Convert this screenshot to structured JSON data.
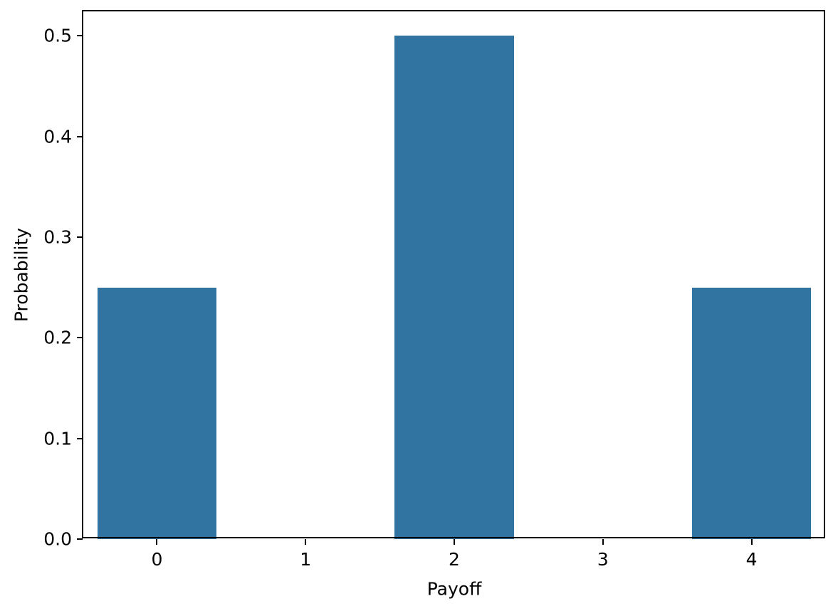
{
  "chart_data": {
    "type": "bar",
    "title": "",
    "xlabel": "Payoff",
    "ylabel": "Probability",
    "categories": [
      "0",
      "1",
      "2",
      "3",
      "4"
    ],
    "values": [
      0.25,
      0,
      0.5,
      0,
      0.25
    ],
    "bar_width": 0.8,
    "colors": {
      "bar": "#3274a1",
      "text": "#000000",
      "spine": "#000000",
      "background": "#ffffff"
    },
    "axes": {
      "xlim": [
        -0.5,
        4.5
      ],
      "ylim": [
        0,
        0.525
      ],
      "grid": false,
      "legend_position": "none"
    },
    "xticks": {
      "positions": [
        0,
        1,
        2,
        3,
        4
      ],
      "labels": [
        "0",
        "1",
        "2",
        "3",
        "4"
      ]
    },
    "yticks": {
      "positions": [
        0,
        0.1,
        0.2,
        0.3,
        0.4,
        0.5
      ],
      "labels": [
        "0.0",
        "0.1",
        "0.2",
        "0.3",
        "0.4",
        "0.5"
      ]
    }
  }
}
